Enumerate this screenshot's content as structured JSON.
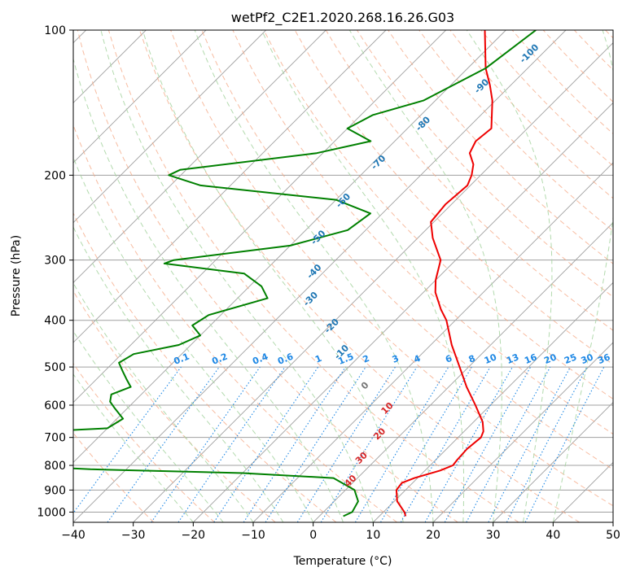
{
  "chart_data": {
    "type": "line",
    "chart_kind": "skew-T log-P diagram",
    "title": "wetPf2_C2E1.2020.268.16.26.G03",
    "xlabel": "Temperature (°C)",
    "ylabel": "Pressure (hPa)",
    "xlim": [
      -40,
      50
    ],
    "ylim": [
      1050,
      100
    ],
    "y_scale": "log",
    "grid": true,
    "x_ticks": [
      -40,
      -30,
      -20,
      -10,
      0,
      10,
      20,
      30,
      40,
      50
    ],
    "x_tick_labels": [
      "−40",
      "−30",
      "−20",
      "−10",
      "0",
      "10",
      "20",
      "30",
      "40",
      "50"
    ],
    "y_ticks": [
      100,
      200,
      300,
      400,
      500,
      600,
      700,
      800,
      900,
      1000
    ],
    "y_tick_labels": [
      "100",
      "200",
      "300",
      "400",
      "500",
      "600",
      "700",
      "800",
      "900",
      "1000"
    ],
    "colors": {
      "temperature": "#ee0000",
      "dewpoint": "#008000",
      "isotherm": "#a0a0a0",
      "dry_adiabat": "#f4a582",
      "moist_adiabat": "#a6d3a0",
      "mixing_ratio": "#1e88e5",
      "height_label": "#1f77b4",
      "lcl_label": "#d62728"
    },
    "series": [
      {
        "key": "temperature",
        "pressure": [
          1020,
          1000,
          950,
          900,
          870,
          850,
          820,
          800,
          780,
          740,
          700,
          680,
          650,
          600,
          550,
          500,
          450,
          400,
          380,
          350,
          330,
          300,
          270,
          250,
          230,
          210,
          200,
          190,
          180,
          170,
          160,
          140,
          130,
          120,
          100
        ],
        "values": [
          14.4,
          13.5,
          10.5,
          8.5,
          8.2,
          9.5,
          12.5,
          13.8,
          13.6,
          13.4,
          13.8,
          13.2,
          11.5,
          7.5,
          3.0,
          -1.5,
          -6.5,
          -11.5,
          -14.2,
          -18.0,
          -20.0,
          -22.5,
          -27.5,
          -30.5,
          -31.0,
          -30.5,
          -31.5,
          -33.0,
          -35.5,
          -36.5,
          -36.0,
          -40.5,
          -43.5,
          -47.0,
          -53.5
        ]
      },
      {
        "key": "dewpoint",
        "pressure": [
          1020,
          1000,
          950,
          900,
          850,
          830,
          815,
          805,
          800,
          780,
          760,
          740,
          720,
          700,
          690,
          670,
          640,
          610,
          590,
          570,
          550,
          530,
          510,
          490,
          470,
          450,
          430,
          410,
          390,
          360,
          340,
          320,
          305,
          300,
          280,
          260,
          240,
          225,
          210,
          200,
          195,
          180,
          170,
          160,
          150,
          140,
          120,
          100
        ],
        "values": [
          4.0,
          4.8,
          4.0,
          1.5,
          -4.0,
          -20.0,
          -46.0,
          -55.0,
          -60.0,
          -57.0,
          -58.0,
          -62.0,
          -70.0,
          -75.0,
          -70.0,
          -50.0,
          -49.0,
          -52.0,
          -54.0,
          -55.0,
          -53.0,
          -55.0,
          -57.0,
          -59.0,
          -58.0,
          -52.0,
          -50.0,
          -53.0,
          -52.0,
          -45.0,
          -48.0,
          -53.0,
          -68.0,
          -67.0,
          -50.0,
          -43.0,
          -42.0,
          -50.0,
          -75.0,
          -82.0,
          -81.0,
          -61.0,
          -54.0,
          -60.0,
          -58.0,
          -52.0,
          -47.0,
          -45.0
        ]
      }
    ],
    "height_labels": [
      {
        "text": "-100",
        "t": -41.5,
        "p": 113
      },
      {
        "text": "-90",
        "t": -44.0,
        "p": 132
      },
      {
        "text": "-80",
        "t": -47.5,
        "p": 158
      },
      {
        "text": "-70",
        "t": -48.5,
        "p": 190
      },
      {
        "text": "-60",
        "t": -48.0,
        "p": 228
      },
      {
        "text": "-50",
        "t": -46.0,
        "p": 272
      },
      {
        "text": "-40",
        "t": -41.0,
        "p": 320
      },
      {
        "text": "-30",
        "t": -37.0,
        "p": 365
      },
      {
        "text": "-20",
        "t": -29.0,
        "p": 415
      },
      {
        "text": "-10",
        "t": -23.0,
        "p": 470
      },
      {
        "text": "0",
        "t": -13.5,
        "p": 552
      },
      {
        "text": "10",
        "t": -6.0,
        "p": 615
      },
      {
        "text": "20",
        "t": -3.0,
        "p": 695
      },
      {
        "text": "30",
        "t": -2.0,
        "p": 780
      },
      {
        "text": "40",
        "t": 0.0,
        "p": 870
      }
    ],
    "mixing_ratio_labels": [
      "0.1",
      "0.2",
      "0.4",
      "0.6",
      "1",
      "1.5",
      "2",
      "3",
      "4",
      "6",
      "8",
      "10",
      "13",
      "16",
      "20",
      "25",
      "30",
      "36"
    ],
    "mixing_ratio_label_pressure": 495
  }
}
